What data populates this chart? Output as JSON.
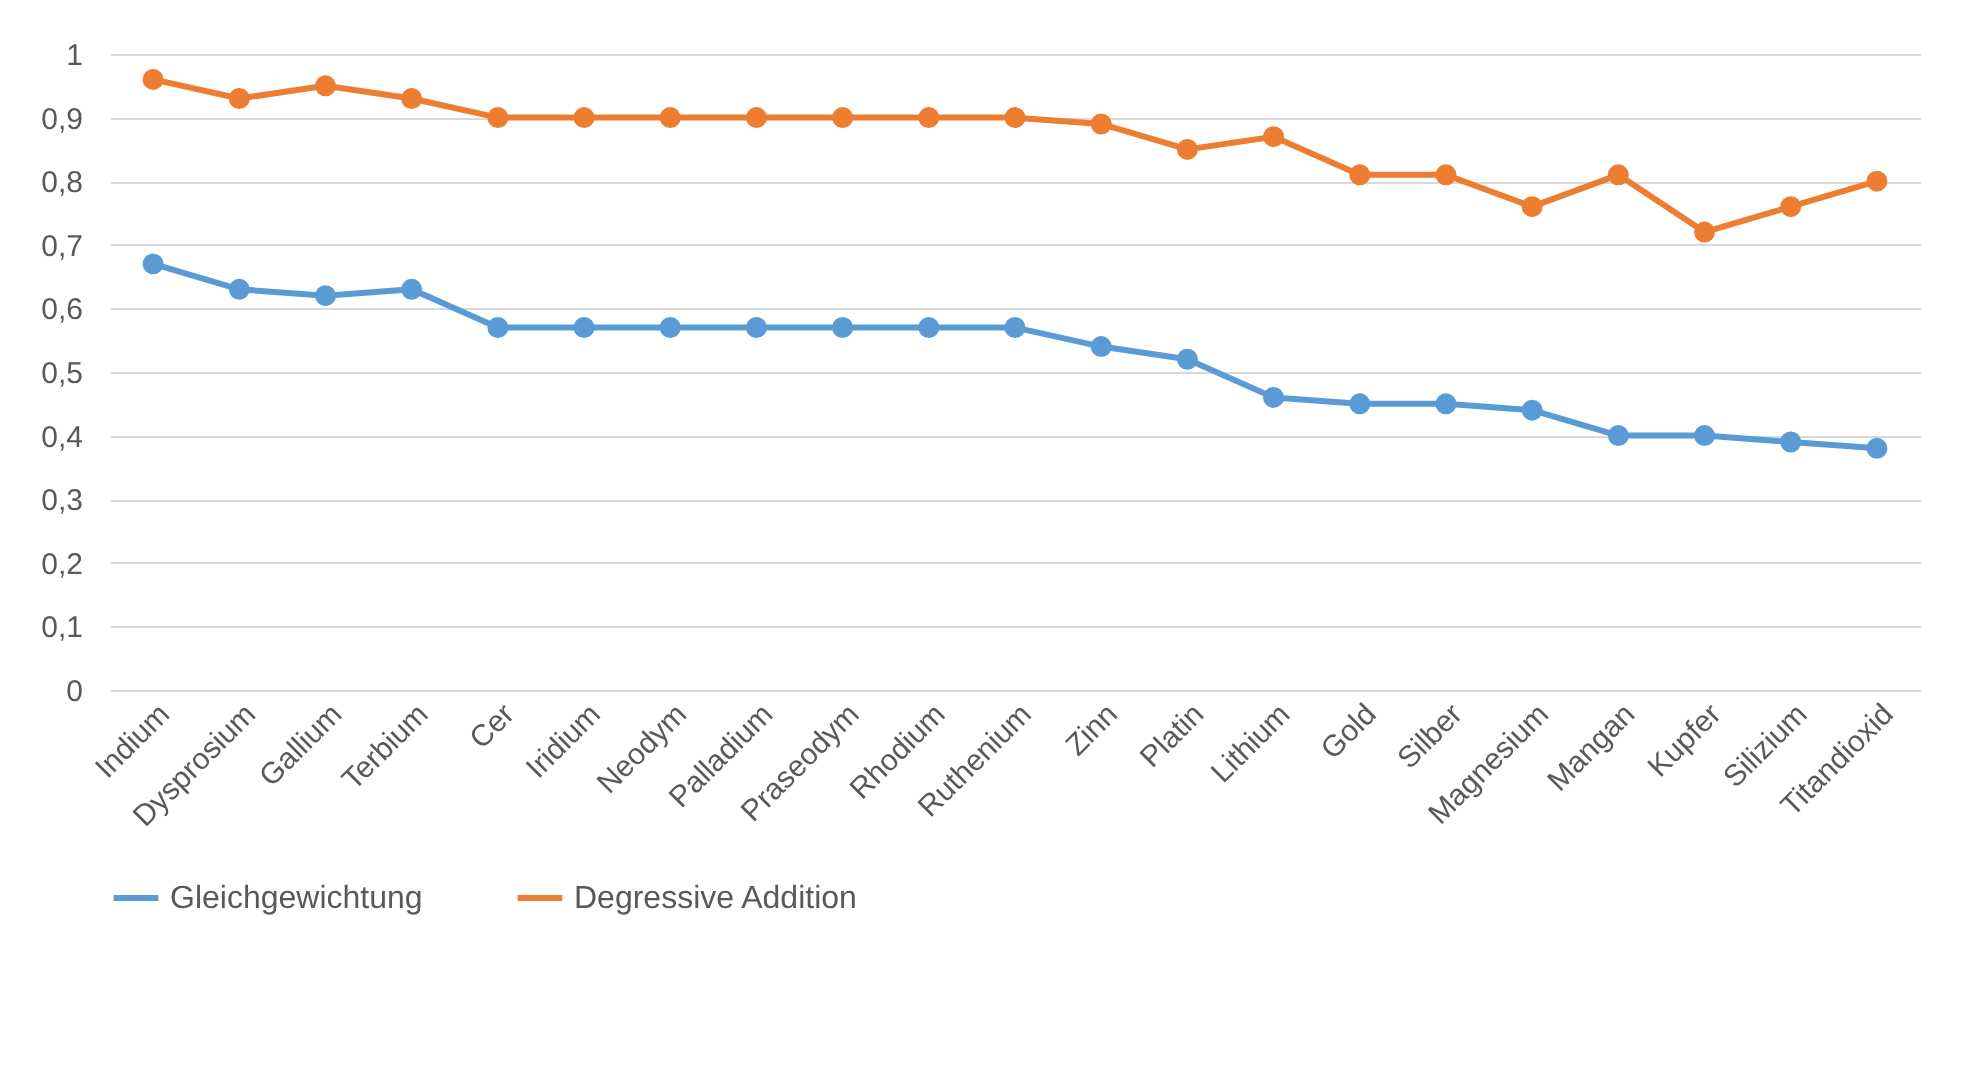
{
  "chart_data": {
    "type": "line",
    "categories": [
      "Indium",
      "Dysprosium",
      "Gallium",
      "Terbium",
      "Cer",
      "Iridium",
      "Neodym",
      "Palladium",
      "Praseodym",
      "Rhodium",
      "Ruthenium",
      "Zinn",
      "Platin",
      "Lithium",
      "Gold",
      "Silber",
      "Magnesium",
      "Mangan",
      "Kupfer",
      "Silizium",
      "Titandioxid"
    ],
    "series": [
      {
        "name": "Gleichgewichtung",
        "color": "#5b9bd5",
        "values": [
          0.67,
          0.63,
          0.62,
          0.63,
          0.57,
          0.57,
          0.57,
          0.57,
          0.57,
          0.57,
          0.57,
          0.54,
          0.52,
          0.46,
          0.45,
          0.45,
          0.44,
          0.4,
          0.4,
          0.39,
          0.38
        ]
      },
      {
        "name": "Degressive Addition",
        "color": "#ed7d31",
        "values": [
          0.96,
          0.93,
          0.95,
          0.93,
          0.9,
          0.9,
          0.9,
          0.9,
          0.9,
          0.9,
          0.9,
          0.89,
          0.85,
          0.87,
          0.81,
          0.81,
          0.76,
          0.81,
          0.72,
          0.76,
          0.8
        ]
      }
    ],
    "ylim": [
      0,
      1
    ],
    "yticks": [
      0,
      {
        "value": 0.1,
        "label": "0,1"
      },
      {
        "value": 0.2,
        "label": "0,2"
      },
      {
        "value": 0.3,
        "label": "0,3"
      },
      {
        "value": 0.4,
        "label": "0,4"
      },
      {
        "value": 0.5,
        "label": "0,5"
      },
      {
        "value": 0.6,
        "label": "0,6"
      },
      {
        "value": 0.7,
        "label": "0,7"
      },
      {
        "value": 0.8,
        "label": "0,8"
      },
      {
        "value": 0.9,
        "label": "0,9"
      },
      1
    ],
    "grid": "y",
    "legend": "bottom",
    "marker": "circle",
    "line_style": "solid"
  }
}
